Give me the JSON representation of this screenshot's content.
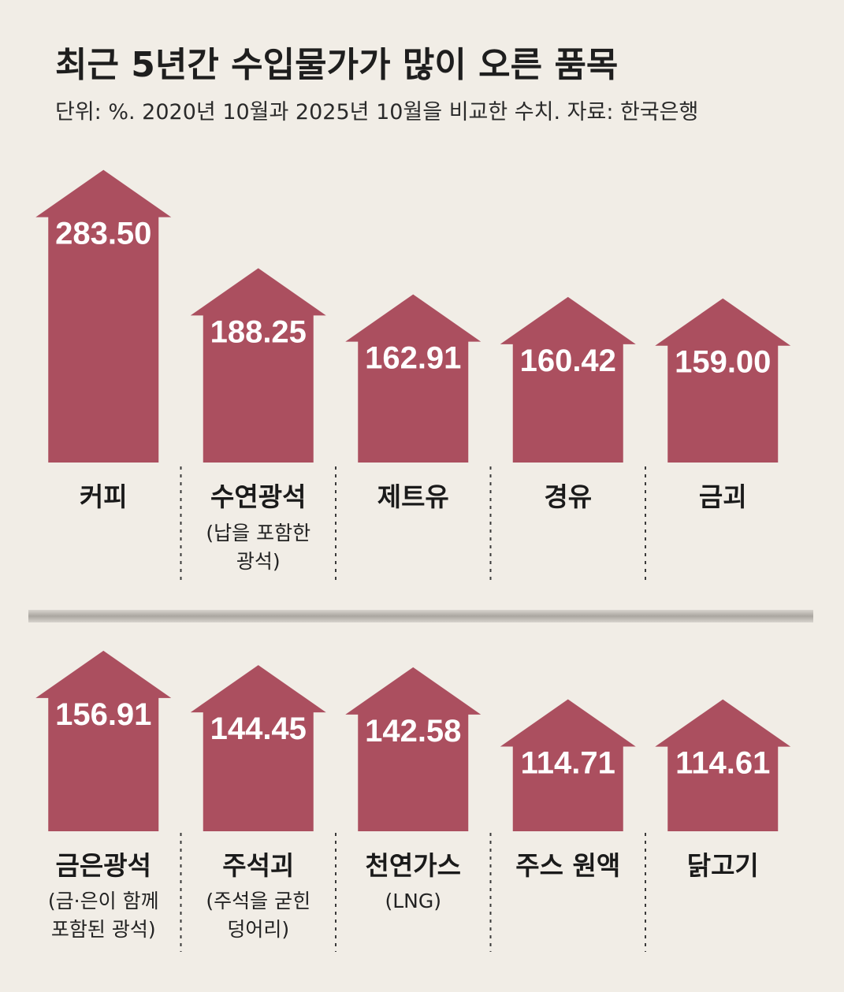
{
  "title": "최근 5년간 수입물가가 많이 오른 품목",
  "subtitle": "단위: %. 2020년 10월과 2025년 10월을 비교한 수치. 자료: 한국은행",
  "colors": {
    "bar": "#ab4f5f",
    "background": "#f1ede6"
  },
  "chart_data": {
    "type": "bar",
    "title": "최근 5년간 수입물가가 많이 오른 품목",
    "subtitle": "단위: %. 2020년 10월과 2025년 10월을 비교한 수치. 자료: 한국은행",
    "categories": [
      "커피",
      "수연광석",
      "제트유",
      "경유",
      "금괴",
      "금은광석",
      "주석괴",
      "천연가스",
      "주스 원액",
      "닭고기"
    ],
    "category_notes": [
      "",
      "(납을 포함한 광석)",
      "",
      "",
      "",
      "(금·은이 함께 포함된 광석)",
      "(주석을 굳힌 덩어리)",
      "(LNG)",
      "",
      ""
    ],
    "values": [
      283.5,
      188.25,
      162.91,
      160.42,
      159.0,
      156.91,
      144.45,
      142.58,
      114.71,
      114.61
    ],
    "value_labels": [
      "283.50",
      "188.25",
      "162.91",
      "160.42",
      "159.00",
      "156.91",
      "144.45",
      "142.58",
      "114.71",
      "114.61"
    ],
    "category_lines": [
      [
        "커피"
      ],
      [
        "수연광석"
      ],
      [
        "제트유"
      ],
      [
        "경유"
      ],
      [
        "금괴"
      ],
      [
        "금은광석"
      ],
      [
        "주석괴"
      ],
      [
        "천연가스"
      ],
      [
        "주스 원액"
      ],
      [
        "닭고기"
      ]
    ],
    "note_lines": [
      [],
      [
        "(납을 포함한",
        "광석)"
      ],
      [],
      [],
      [],
      [
        "(금·은이 함께",
        "포함된 광석)"
      ],
      [
        "(주석을 굳힌",
        "덩어리)"
      ],
      [
        "(LNG)"
      ],
      [],
      []
    ],
    "rows": 2,
    "grid": false,
    "legend": "none"
  }
}
